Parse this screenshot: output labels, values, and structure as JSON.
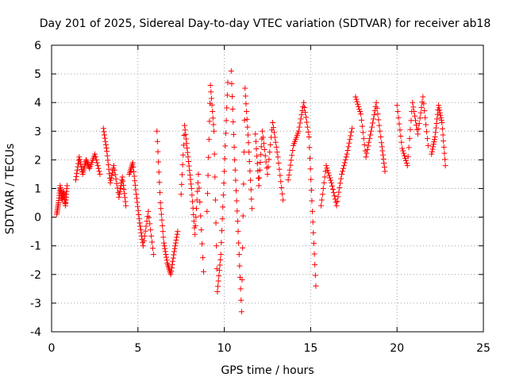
{
  "chart_data": {
    "type": "scatter",
    "title": "Day 201 of 2025, Sidereal Day-to-day VTEC variation (SDTVAR) for receiver ab18",
    "xlabel": "GPS time / hours",
    "ylabel": "SDTVAR / TECUs",
    "xlim": [
      0,
      25
    ],
    "ylim": [
      -4,
      6
    ],
    "xticks": [
      0,
      5,
      10,
      15,
      20,
      25
    ],
    "yticks": [
      -4,
      -3,
      -2,
      -1,
      0,
      1,
      2,
      3,
      4,
      5,
      6
    ],
    "grid": true,
    "marker": "plus",
    "color": "#ff0000",
    "series": [
      {
        "name": "SDTVAR",
        "segments": [
          {
            "x": [
              0.3,
              0.4,
              0.5,
              0.6,
              0.7,
              0.8,
              0.9
            ],
            "y": [
              0.1,
              0.5,
              1.1,
              0.6,
              0.9,
              0.4,
              1.1
            ]
          },
          {
            "x": [
              1.4,
              1.6,
              1.8,
              2.0,
              2.2,
              2.5,
              2.8
            ],
            "y": [
              1.3,
              2.1,
              1.5,
              2.0,
              1.7,
              2.2,
              1.5
            ]
          },
          {
            "x": [
              3.0,
              3.2,
              3.4,
              3.6,
              3.9,
              4.1,
              4.3
            ],
            "y": [
              3.1,
              2.3,
              1.2,
              1.8,
              0.7,
              1.4,
              0.4
            ]
          },
          {
            "x": [
              4.5,
              4.7,
              4.9,
              5.1,
              5.3,
              5.6,
              5.9
            ],
            "y": [
              1.5,
              1.9,
              0.8,
              -0.2,
              -1.0,
              0.2,
              -1.3
            ]
          },
          {
            "x": [
              6.1,
              6.3,
              6.5,
              6.7,
              6.9,
              7.1,
              7.3
            ],
            "y": [
              3.0,
              0.5,
              -0.9,
              -1.6,
              -2.0,
              -1.2,
              -0.5
            ]
          },
          {
            "x": [
              7.5,
              7.7,
              7.9,
              8.1,
              8.3,
              8.5,
              8.8
            ],
            "y": [
              0.8,
              3.2,
              2.1,
              1.0,
              -0.6,
              1.5,
              -1.9
            ]
          },
          {
            "x": [
              9.0,
              9.2,
              9.4,
              9.6,
              9.8,
              10.0,
              10.2
            ],
            "y": [
              0.2,
              4.6,
              3.0,
              -2.6,
              -1.3,
              1.6,
              4.7
            ]
          },
          {
            "x": [
              10.4,
              10.6,
              10.8,
              11.0,
              11.2,
              11.4,
              11.6
            ],
            "y": [
              5.1,
              2.0,
              -0.5,
              -3.3,
              4.5,
              2.6,
              0.3
            ]
          },
          {
            "x": [
              11.8,
              12.0,
              12.2,
              12.5,
              12.8,
              13.1,
              13.4
            ],
            "y": [
              2.9,
              1.1,
              3.0,
              1.5,
              3.3,
              2.1,
              0.6
            ]
          },
          {
            "x": [
              13.7,
              14.0,
              14.3,
              14.6,
              14.9,
              15.1,
              15.3
            ],
            "y": [
              1.3,
              2.5,
              3.0,
              4.0,
              2.8,
              0.2,
              -2.4
            ]
          },
          {
            "x": [
              15.6,
              15.9,
              16.2,
              16.5,
              16.8,
              17.1,
              17.4
            ],
            "y": [
              0.4,
              1.8,
              1.2,
              0.4,
              1.5,
              2.2,
              3.1
            ]
          },
          {
            "x": [
              17.6,
              17.9,
              18.2,
              18.5,
              18.8,
              19.1,
              19.3
            ],
            "y": [
              4.2,
              3.6,
              2.1,
              3.0,
              4.0,
              2.6,
              1.6
            ]
          },
          {
            "x": [
              20.0,
              20.3,
              20.6,
              20.9,
              21.2,
              21.5,
              21.8
            ],
            "y": [
              3.9,
              2.4,
              1.8,
              4.0,
              2.9,
              4.2,
              2.5
            ]
          },
          {
            "x": [
              22.0,
              22.2,
              22.4,
              22.6,
              22.8
            ],
            "y": [
              2.2,
              2.8,
              3.9,
              3.3,
              1.8
            ]
          }
        ]
      }
    ]
  }
}
